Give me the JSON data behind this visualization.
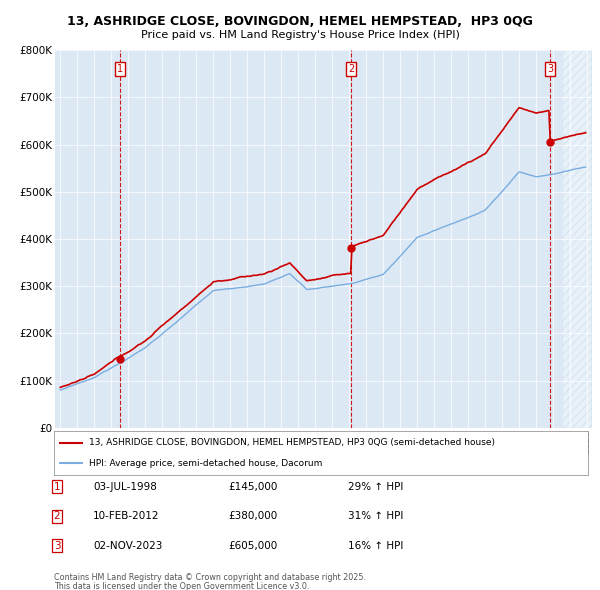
{
  "title1": "13, ASHRIDGE CLOSE, BOVINGDON, HEMEL HEMPSTEAD,  HP3 0QG",
  "title2": "Price paid vs. HM Land Registry's House Price Index (HPI)",
  "legend_red": "13, ASHRIDGE CLOSE, BOVINGDON, HEMEL HEMPSTEAD, HP3 0QG (semi-detached house)",
  "legend_blue": "HPI: Average price, semi-detached house, Dacorum",
  "sale_labels": [
    {
      "num": 1,
      "date": "03-JUL-1998",
      "price": "£145,000",
      "hpi": "29% ↑ HPI",
      "year": 1998.5,
      "price_val": 145000
    },
    {
      "num": 2,
      "date": "10-FEB-2012",
      "price": "£380,000",
      "hpi": "31% ↑ HPI",
      "year": 2012.1,
      "price_val": 380000
    },
    {
      "num": 3,
      "date": "02-NOV-2023",
      "price": "£605,000",
      "hpi": "16% ↑ HPI",
      "year": 2023.83,
      "price_val": 605000
    }
  ],
  "footnote1": "Contains HM Land Registry data © Crown copyright and database right 2025.",
  "footnote2": "This data is licensed under the Open Government Licence v3.0.",
  "ylim": [
    0,
    800000
  ],
  "yticks": [
    0,
    100000,
    200000,
    300000,
    400000,
    500000,
    600000,
    700000,
    800000
  ],
  "ytick_labels": [
    "£0",
    "£100K",
    "£200K",
    "£300K",
    "£400K",
    "£500K",
    "£600K",
    "£700K",
    "£800K"
  ],
  "red_color": "#cc0000",
  "blue_color": "#7aade0",
  "vline_color": "#cc0000",
  "chart_bg": "#dce9f5",
  "hatch_color": "#c8d8e8"
}
